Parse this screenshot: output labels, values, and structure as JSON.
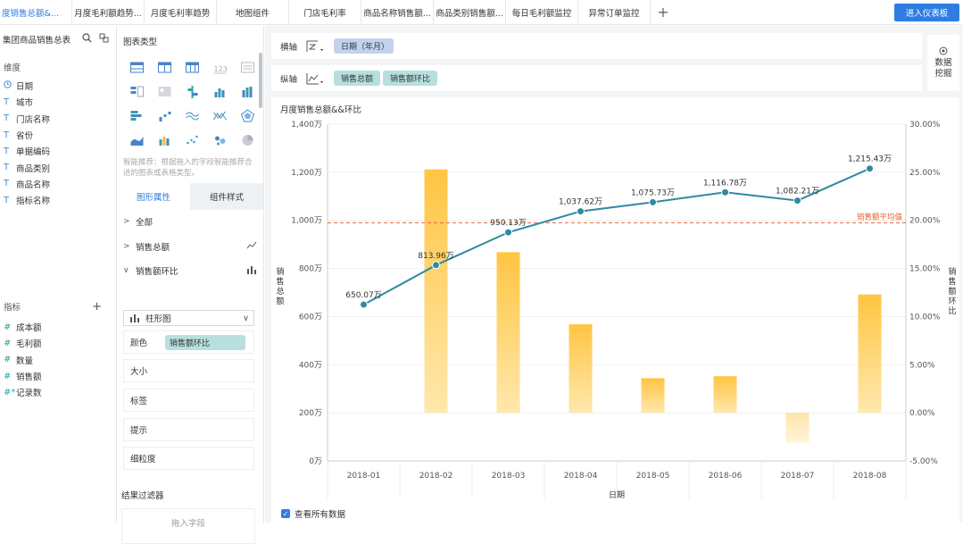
{
  "tabs": [
    "度销售总额&...",
    "月度毛利额趋势...",
    "月度毛利率趋势",
    "地图组件",
    "门店毛利率",
    "商品名称销售额...",
    "商品类别销售额...",
    "每日毛利额监控",
    "异常订单监控"
  ],
  "enter_button": "进入仪表板",
  "fields_panel": {
    "title": "集团商品销售总表",
    "dimensions_label": "维度",
    "dimensions": [
      "日期",
      "城市",
      "门店名称",
      "省份",
      "单据编码",
      "商品类别",
      "商品名称",
      "指标名称"
    ],
    "measures_label": "指标",
    "measures": [
      "成本额",
      "毛利额",
      "数量",
      "销售额",
      "记录数"
    ]
  },
  "chart_type_panel": {
    "title": "图表类型",
    "hint": "智能推荐：根据拖入的字段智能推荐合适的图表或表格类型。",
    "tab_graph": "图形属性",
    "tab_component": "组件样式",
    "all": "全部",
    "series1": "销售总额",
    "series2": "销售额环比",
    "chart_kind": "柱形图",
    "color_label": "颜色",
    "color_field": "销售额环比",
    "size_label": "大小",
    "tag_label": "标签",
    "tooltip_label": "提示",
    "granularity_label": "细粒度",
    "filter_title": "结果过滤器",
    "filter_drop": "拖入字段",
    "icon_names": [
      "table-icon",
      "crosstab-icon",
      "detail-table-icon",
      "kpi-card-icon",
      "text-icon",
      "grouped-table-icon",
      "image-icon",
      "range-bar-icon",
      "bar-chart-icon",
      "stacked-bar-icon",
      "horizontal-bar-icon",
      "scatter-bar-icon",
      "wave-line-icon",
      "multi-line-icon",
      "radar-icon",
      "area-chart-icon",
      "column-line-icon",
      "dot-scatter-icon",
      "bubble-icon",
      "pie-icon"
    ]
  },
  "axes_bar": {
    "x_label": "横轴",
    "x_pill": "日期（年月）",
    "y_label": "纵轴",
    "y_pills": [
      "销售总额",
      "销售额环比"
    ]
  },
  "data_mining": "数据挖掘",
  "chart_title": "月度销售总额&&环比",
  "view_all_data": "查看所有数据",
  "colors": {
    "line": "#2f8aa0",
    "bar_top": "#ffbd3a",
    "bar_bottom": "#ffe6a8",
    "avg_line": "#e8643a",
    "accent": "#2f7de1"
  },
  "chart_data": {
    "type": "bar+line",
    "categories": [
      "2018-01",
      "2018-02",
      "2018-03",
      "2018-04",
      "2018-05",
      "2018-06",
      "2018-07",
      "2018-08"
    ],
    "line_series": {
      "name": "销售总额",
      "values": [
        650.07,
        813.96,
        950.13,
        1037.62,
        1075.73,
        1116.78,
        1082.21,
        1215.43
      ],
      "labels": [
        "650.07万",
        "813.96万",
        "950.13万",
        "1,037.62万",
        "1,075.73万",
        "1,116.78万",
        "1,082.21万",
        "1,215.43万"
      ]
    },
    "bar_series": {
      "name": "销售额环比",
      "values": [
        null,
        25.3,
        16.7,
        9.2,
        3.6,
        3.8,
        -3.1,
        12.3
      ]
    },
    "y_left": {
      "label": "销售总额",
      "ticks": [
        "0万",
        "200万",
        "400万",
        "600万",
        "800万",
        "1,000万",
        "1,200万",
        "1,400万"
      ],
      "min": 0,
      "max": 1400
    },
    "y_right": {
      "label": "销售额环比",
      "ticks": [
        "-5.00%",
        "0.00%",
        "5.00%",
        "10.00%",
        "15.00%",
        "20.00%",
        "25.00%",
        "30.00%"
      ],
      "min": -5,
      "max": 30
    },
    "x_label": "日期",
    "avg_line": {
      "label": "销售额平均值",
      "value": 990
    }
  }
}
